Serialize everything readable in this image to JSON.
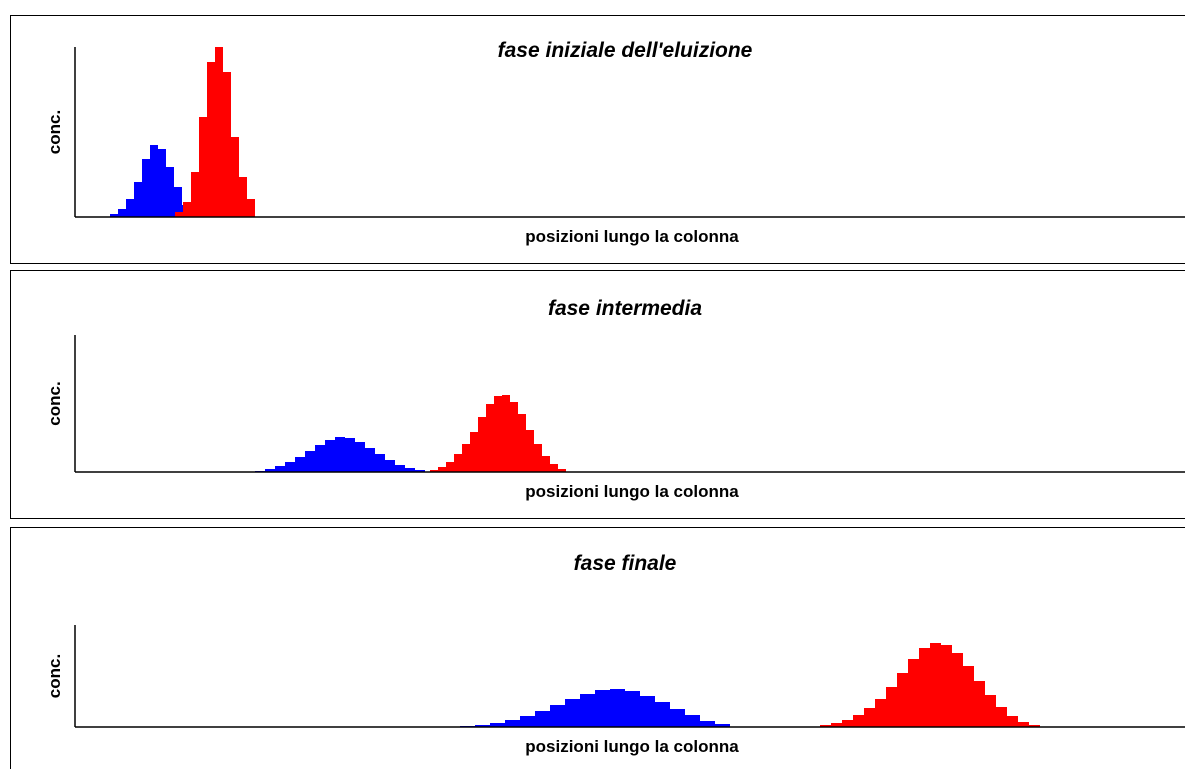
{
  "chart_data": [
    {
      "type": "histogram",
      "title": "fase iniziale dell'eluizione",
      "x_label": "posizioni lungo la colonna",
      "y_label": "conc.",
      "xlim": [
        0,
        1110
      ],
      "ylim": [
        0,
        170
      ],
      "series": [
        {
          "color": "#0000ff",
          "bins": [
            35,
            43,
            51,
            59,
            67,
            75,
            83,
            91,
            99,
            107,
            115
          ],
          "values": [
            3,
            8,
            18,
            35,
            58,
            72,
            68,
            50,
            30,
            12
          ]
        },
        {
          "color": "#ff0000",
          "bins": [
            100,
            108,
            116,
            124,
            132,
            140,
            148,
            156,
            164,
            172,
            180
          ],
          "values": [
            5,
            15,
            45,
            100,
            155,
            170,
            145,
            80,
            40,
            18
          ]
        }
      ]
    },
    {
      "type": "histogram",
      "title": "fase intermedia",
      "x_label": "posizioni lungo la colonna",
      "y_label": "conc.",
      "xlim": [
        0,
        1110
      ],
      "ylim": [
        0,
        137
      ],
      "series": [
        {
          "color": "#0000ff",
          "bins": [
            180,
            190,
            200,
            210,
            220,
            230,
            240,
            250,
            260,
            270,
            280,
            290,
            300,
            310,
            320,
            330,
            340,
            350
          ],
          "values": [
            1,
            3,
            6,
            10,
            15,
            21,
            27,
            32,
            35,
            34,
            30,
            24,
            18,
            12,
            7,
            4,
            2
          ]
        },
        {
          "color": "#ff0000",
          "bins": [
            355,
            363,
            371,
            379,
            387,
            395,
            403,
            411,
            419,
            427,
            435,
            443,
            451,
            459,
            467,
            475,
            483,
            491
          ],
          "values": [
            2,
            5,
            10,
            18,
            28,
            40,
            55,
            68,
            76,
            77,
            70,
            58,
            42,
            28,
            16,
            8,
            3
          ]
        }
      ]
    },
    {
      "type": "histogram",
      "title": "fase finale",
      "x_label": "posizioni lungo la colonna",
      "y_label": "conc.",
      "xlim": [
        0,
        1110
      ],
      "ylim": [
        0,
        102
      ],
      "series": [
        {
          "color": "#0000ff",
          "bins": [
            385,
            400,
            415,
            430,
            445,
            460,
            475,
            490,
            505,
            520,
            535,
            550,
            565,
            580,
            595,
            610,
            625,
            640,
            655
          ],
          "values": [
            1,
            2,
            4,
            7,
            11,
            16,
            22,
            28,
            33,
            37,
            38,
            36,
            31,
            25,
            18,
            12,
            6,
            3
          ]
        },
        {
          "color": "#ff0000",
          "bins": [
            745,
            756,
            767,
            778,
            789,
            800,
            811,
            822,
            833,
            844,
            855,
            866,
            877,
            888,
            899,
            910,
            921,
            932,
            943,
            954,
            965
          ],
          "values": [
            2,
            4,
            7,
            12,
            19,
            28,
            40,
            54,
            68,
            79,
            84,
            82,
            74,
            61,
            46,
            32,
            20,
            11,
            5,
            2
          ]
        }
      ]
    }
  ]
}
